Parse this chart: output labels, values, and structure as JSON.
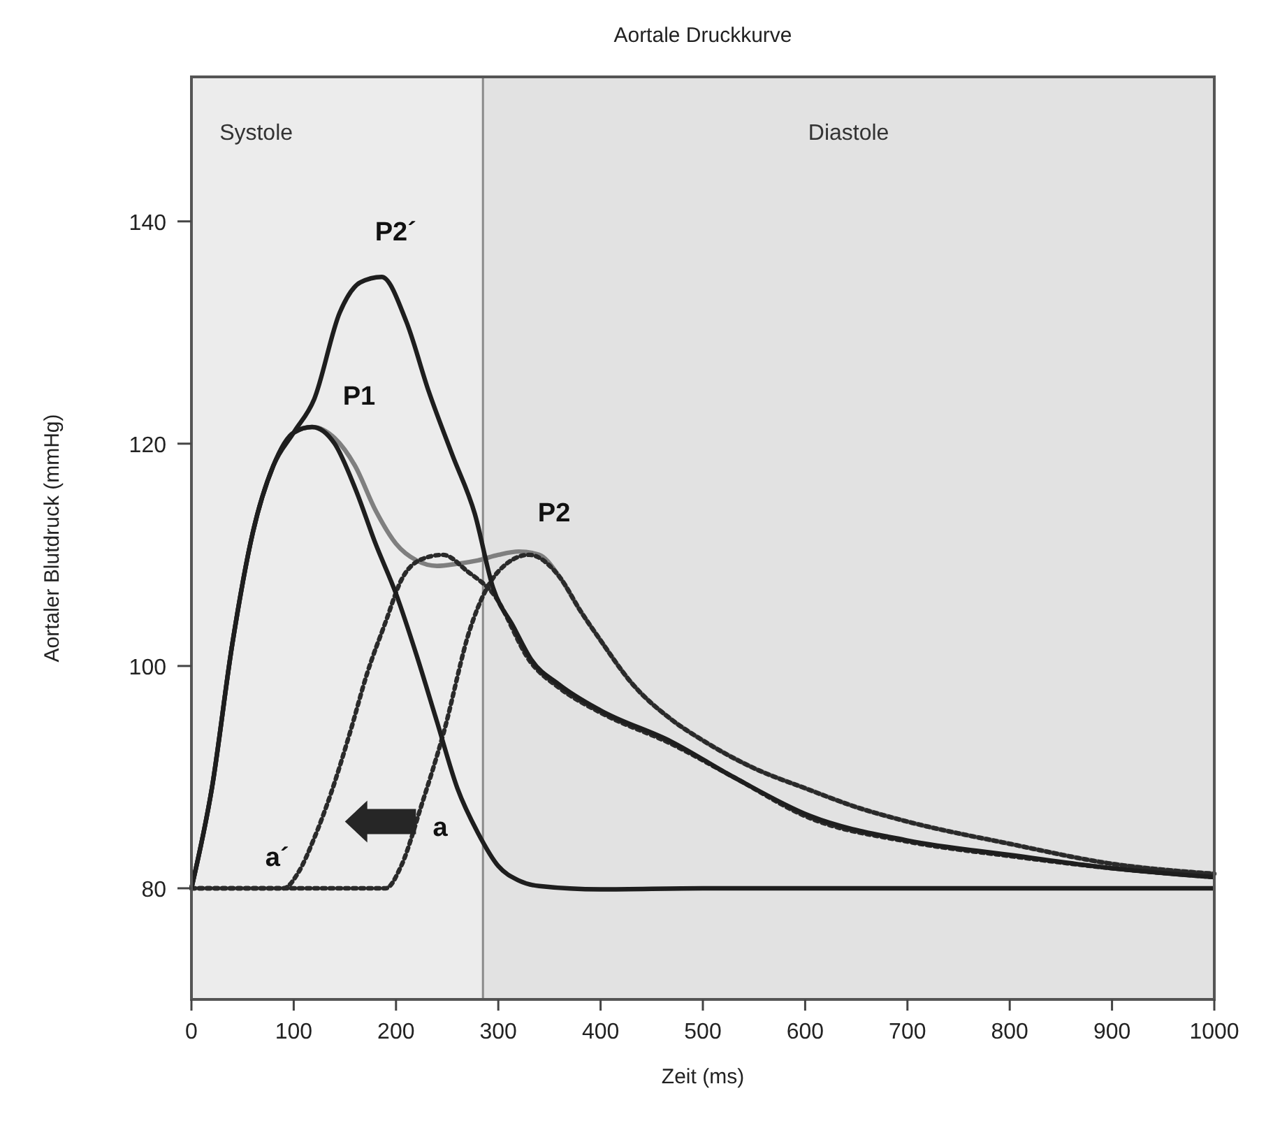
{
  "chart_data": {
    "type": "line",
    "title": "Aortale Druckkurve",
    "xlabel": "Zeit (ms)",
    "ylabel": "Aortaler Blutdruck (mmHg)",
    "xlim": [
      0,
      1000
    ],
    "xticks": [
      0,
      100,
      200,
      300,
      400,
      500,
      600,
      700,
      800,
      900,
      1000
    ],
    "ylim": [
      70,
      153
    ],
    "yticks": [
      80,
      100,
      120,
      140
    ],
    "grid": false,
    "marker": "none",
    "bands": [
      {
        "axis": "x",
        "from": 0,
        "to": 285,
        "label": "Systole",
        "color": "#ececec"
      },
      {
        "axis": "x",
        "from": 285,
        "to": 1000,
        "label": "Diastole",
        "color": "#e2e2e2"
      }
    ],
    "ref_lines": [
      {
        "axis": "x",
        "value": 285,
        "color": "#8a8a8a"
      }
    ],
    "series": [
      {
        "color": "#7f7f7f",
        "line_style": "solid",
        "x": [
          0,
          20,
          40,
          60,
          80,
          100,
          118,
          140,
          160,
          180,
          200,
          220,
          240,
          260,
          280,
          300,
          320,
          340,
          360,
          380,
          400,
          430,
          469,
          500,
          550,
          600,
          650,
          700,
          800,
          900,
          1000
        ],
        "values": [
          80,
          89,
          102,
          112,
          118,
          121,
          121.5,
          120.5,
          118,
          114,
          111,
          109.5,
          109,
          109.2,
          109.5,
          110,
          110.3,
          110,
          108,
          105,
          102.3,
          98.5,
          95.2,
          93.3,
          90.8,
          89,
          87.3,
          86,
          84,
          82.2,
          81.3
        ]
      },
      {
        "color": "#2a2a2a",
        "line_style": "dotted",
        "x": [
          0,
          190,
          205,
          225,
          246,
          273,
          300,
          330,
          360,
          380,
          400,
          430,
          469,
          500,
          550,
          600,
          650,
          700,
          800,
          900,
          1000
        ],
        "values": [
          80,
          80,
          82,
          87.5,
          93.8,
          103.5,
          108.5,
          110,
          108,
          105,
          102.3,
          98.5,
          95.2,
          93.3,
          90.8,
          89,
          87.3,
          86,
          84,
          82.2,
          81.3
        ]
      },
      {
        "color": "#2a2a2a",
        "line_style": "dotted",
        "x": [
          0,
          90,
          105,
          120,
          137,
          155,
          172,
          190,
          205,
          225,
          246,
          270,
          295,
          332,
          360,
          400,
          469,
          530,
          605,
          700,
          800,
          900,
          1000
        ],
        "values": [
          80,
          80,
          81.5,
          84.5,
          88.7,
          94,
          99.4,
          104,
          107.7,
          109.6,
          110,
          108.5,
          106.5,
          100.3,
          98,
          95.8,
          93,
          90,
          86.3,
          84.2,
          82.9,
          81.8,
          81
        ]
      },
      {
        "color": "#1e1e1e",
        "line_style": "solid",
        "x": [
          0,
          20,
          40,
          60,
          80,
          100,
          118,
          140,
          160,
          180,
          200,
          220,
          240,
          260,
          280,
          300,
          320,
          340,
          400,
          500,
          1000
        ],
        "values": [
          80,
          89,
          102,
          112,
          118,
          121,
          121.5,
          120,
          116,
          111,
          106.5,
          101,
          95,
          89,
          85,
          82,
          80.7,
          80.2,
          79.9,
          80,
          80
        ]
      },
      {
        "color": "#1e1e1e",
        "line_style": "solid",
        "x": [
          0,
          20,
          40,
          60,
          80,
          100,
          120,
          145,
          165,
          186,
          210,
          232,
          255,
          277,
          295,
          315,
          332,
          360,
          400,
          469,
          530,
          605,
          700,
          800,
          900,
          1000
        ],
        "values": [
          80,
          89,
          102,
          112,
          118,
          121,
          124,
          131.8,
          134.5,
          135,
          131,
          124.7,
          119,
          113.7,
          107,
          103.5,
          100.6,
          98.3,
          96,
          93.2,
          90,
          86.5,
          84.3,
          83,
          81.8,
          81
        ]
      }
    ],
    "annotations": [
      {
        "text": "P2´",
        "x": 186,
        "y": 135
      },
      {
        "text": "P1",
        "x": 118,
        "y": 121.5
      },
      {
        "text": "P2",
        "x": 330,
        "y": 110
      },
      {
        "text": "a´",
        "x": 120,
        "y": 84.5
      },
      {
        "text": "a",
        "x": 225,
        "y": 87.5
      }
    ]
  }
}
